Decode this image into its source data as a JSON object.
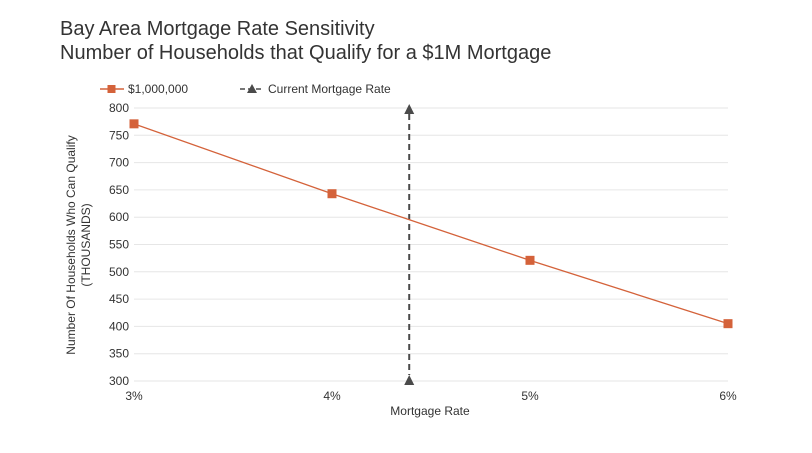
{
  "chart_data": {
    "type": "line",
    "title": [
      "Bay Area Mortgage Rate Sensitivity",
      "Number of Households that Qualify for a $1M Mortgage"
    ],
    "xlabel": "Mortgage Rate",
    "ylabel": [
      "Number Of Households Who Can Qualify",
      "(THOUSANDS)"
    ],
    "x": [
      3,
      4,
      5,
      6
    ],
    "x_tick_labels": [
      "3%",
      "4%",
      "5%",
      "6%"
    ],
    "xlim": [
      3,
      6
    ],
    "ylim": [
      300,
      800
    ],
    "y_ticks": [
      300,
      350,
      400,
      450,
      500,
      550,
      600,
      650,
      700,
      750,
      800
    ],
    "grid": true,
    "legend_position": "top-left",
    "series": [
      {
        "name": "$1,000,000",
        "values": [
          771,
          643,
          521,
          405
        ],
        "color": "#d4623a",
        "marker": "square"
      }
    ],
    "reference_lines": [
      {
        "name": "Current Mortgage Rate",
        "x": 4.39,
        "y_range": [
          300,
          800
        ],
        "color": "#4a4a4a",
        "marker": "triangle",
        "style": "dashed"
      }
    ]
  }
}
